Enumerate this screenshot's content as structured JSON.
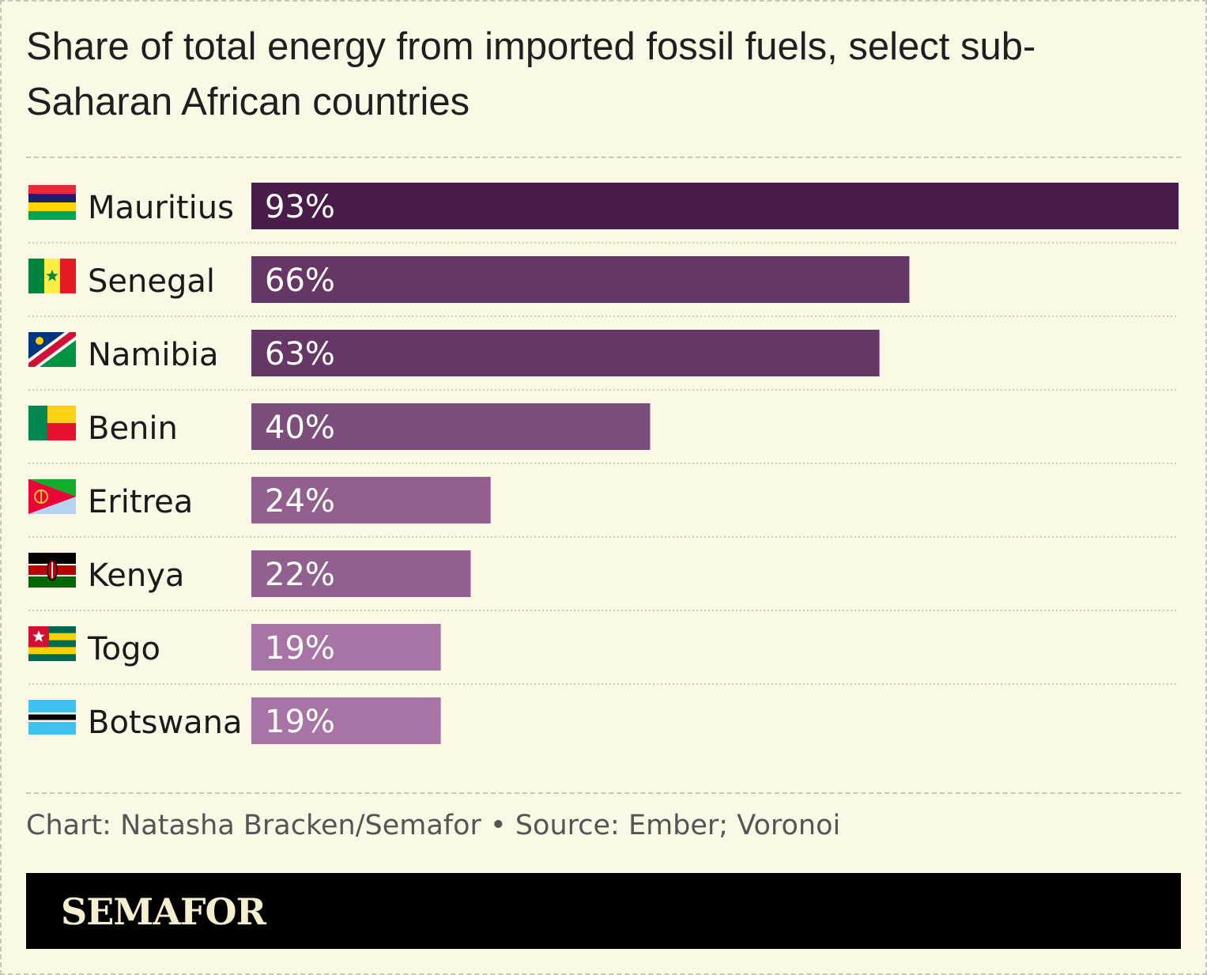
{
  "title": "Share of total energy from imported fossil fuels, select sub-Saharan African countries",
  "credit": "Chart: Natasha Bracken/Semafor • Source: Ember; Voronoi",
  "brand": "SEMAFOR",
  "chart_data": {
    "type": "bar",
    "orientation": "horizontal",
    "categories": [
      "Mauritius",
      "Senegal",
      "Namibia",
      "Benin",
      "Eritrea",
      "Kenya",
      "Togo",
      "Botswana"
    ],
    "values": [
      93,
      66,
      63,
      40,
      24,
      22,
      19,
      19
    ],
    "labels": [
      "93%",
      "66%",
      "63%",
      "40%",
      "24%",
      "22%",
      "19%",
      "19%"
    ],
    "flags": [
      "mauritius-flag",
      "senegal-flag",
      "namibia-flag",
      "benin-flag",
      "eritrea-flag",
      "kenya-flag",
      "togo-flag",
      "botswana-flag"
    ],
    "bar_colors": [
      "#4a1c4a",
      "#663764",
      "#663764",
      "#7d4e7c",
      "#92608f",
      "#92608f",
      "#a874a6",
      "#a874a6"
    ],
    "xlim": [
      0,
      93
    ],
    "grid": false
  }
}
